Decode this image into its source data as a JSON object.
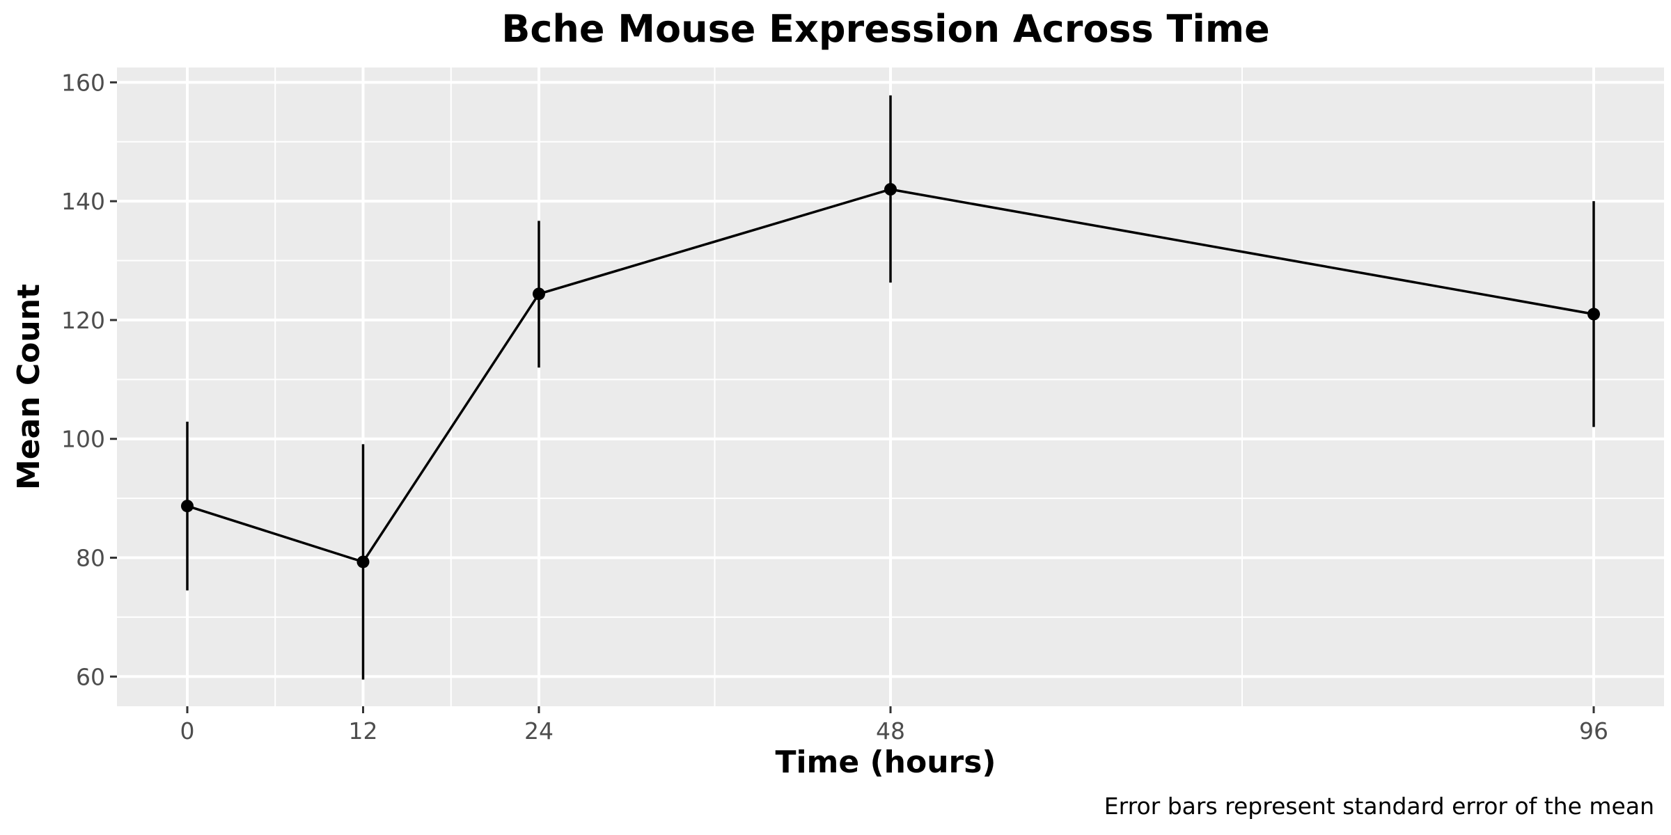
{
  "chart_data": {
    "type": "line",
    "title": "Bche Mouse Expression Across Time",
    "xlabel": "Time (hours)",
    "ylabel": "Mean Count",
    "caption": "Error bars represent standard error of the mean",
    "x": [
      0,
      12,
      24,
      48,
      96
    ],
    "x_ticks": [
      0,
      12,
      24,
      48,
      96
    ],
    "x_tick_labels": [
      "0",
      "12",
      "24",
      "48",
      "96"
    ],
    "xlim": [
      -4.8,
      100.8
    ],
    "y_ticks": [
      60,
      80,
      100,
      120,
      140,
      160
    ],
    "y_tick_labels": [
      "60",
      "80",
      "100",
      "120",
      "140",
      "160"
    ],
    "ylim": [
      55,
      162.5
    ],
    "grid": true,
    "legend": "none",
    "series": [
      {
        "values": [
          88.7,
          79.3,
          124.4,
          142.0,
          121.0
        ],
        "error_low": [
          74.5,
          59.5,
          112.0,
          126.3,
          102.0
        ],
        "error_high": [
          102.9,
          99.1,
          136.7,
          157.8,
          140.0
        ],
        "color": "#000000"
      }
    ],
    "panel_background": "#ebebeb",
    "grid_color": "#ffffff"
  }
}
